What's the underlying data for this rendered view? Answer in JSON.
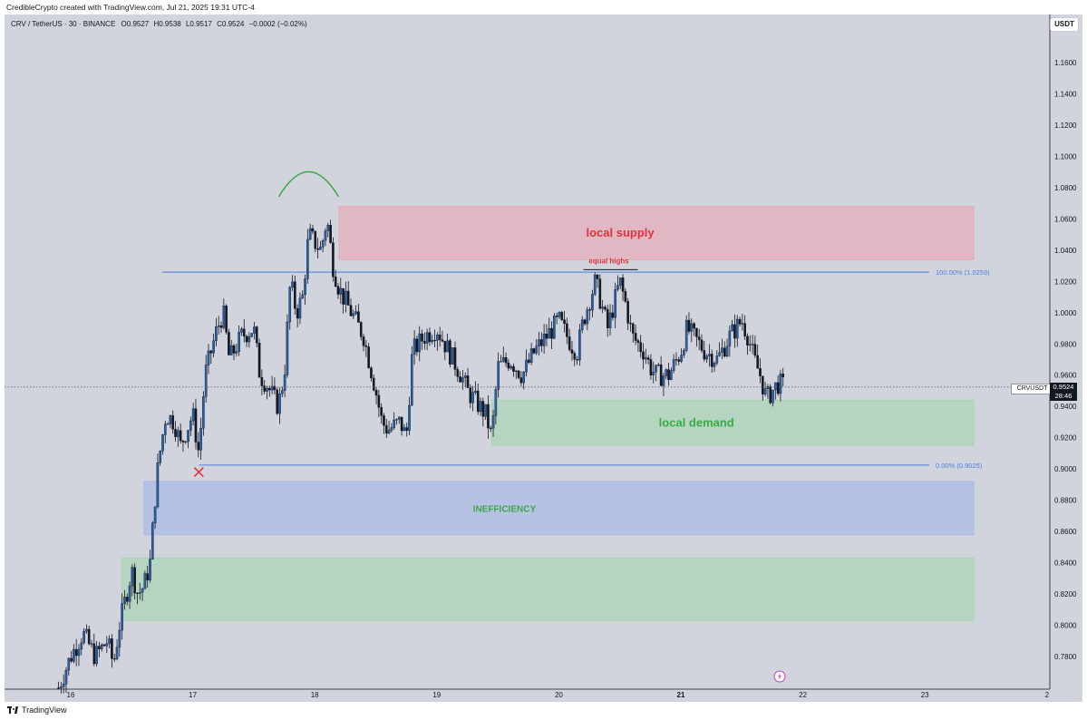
{
  "header": {
    "caption": "CredibleCrypto created with TradingView.com, Jul 21, 2025 19:31 UTC-4"
  },
  "legend": {
    "symbol": "CRV / TetherUS · 30 · BINANCE",
    "open_label": "O",
    "open": "0.9527",
    "high_label": "H",
    "high": "0.9538",
    "low_label": "L",
    "low": "0.9517",
    "close_label": "C",
    "close": "0.9524",
    "change": "−0.0002 (−0.02%)"
  },
  "currency_button": {
    "label": "USDT"
  },
  "price_tag": {
    "symbol": "CRVUSDT",
    "price": "0.9524",
    "countdown": "28:46"
  },
  "footer": {
    "brand": "TradingView"
  },
  "colors": {
    "background": "#d1d4dc",
    "candle_up": "#2962a8",
    "candle_down": "#131722",
    "fib_line": "#4a7fe0",
    "supply_zone": "#e8a7b3",
    "demand_zone": "#a8d5b0",
    "inefficiency_zone": "#a7b9e8",
    "supply_text": "#e5323a",
    "demand_text": "#3aaa45",
    "arc": "#2ea83a",
    "x_mark": "#e5323a"
  },
  "chart_data": {
    "type": "candlestick",
    "symbol": "CRV / TetherUS",
    "interval": "30",
    "x_ticks": [
      "16",
      "17",
      "18",
      "19",
      "20",
      "21",
      "22",
      "23",
      "2"
    ],
    "y_ticks": [
      "1.1600",
      "1.1400",
      "1.1200",
      "1.1000",
      "1.0800",
      "1.0600",
      "1.0400",
      "1.0200",
      "1.0000",
      "0.9800",
      "0.9600",
      "0.9400",
      "0.9200",
      "0.9000",
      "0.8800",
      "0.8600",
      "0.8400",
      "0.8200",
      "0.8000",
      "0.7800"
    ],
    "ylim": [
      0.765,
      1.178
    ],
    "grid": false,
    "zones": [
      {
        "name": "local-supply",
        "label": "local supply",
        "low": 1.034,
        "high": 1.068,
        "from_day": 18.2,
        "to_day": 23.4
      },
      {
        "name": "local-demand",
        "label": "local demand",
        "low": 0.915,
        "high": 0.944,
        "from_day": 19.45,
        "to_day": 23.4
      },
      {
        "name": "inefficiency",
        "label": "INEFFICIENCY",
        "low": 0.858,
        "high": 0.892,
        "from_day": 16.6,
        "to_day": 23.4
      },
      {
        "name": "lower-demand",
        "label": "",
        "low": 0.803,
        "high": 0.843,
        "from_day": 16.42,
        "to_day": 23.4
      }
    ],
    "fib_levels": [
      {
        "label": "100.00% (1.0259)",
        "price": 1.0259,
        "from_day": 16.75
      },
      {
        "label": "0.00% (0.9025)",
        "price": 0.9025,
        "from_day": 17.05
      }
    ],
    "annotations": [
      {
        "type": "text",
        "label": "equal highs",
        "price": 1.031,
        "day": 20.35
      },
      {
        "type": "arc",
        "day": 17.95,
        "price": 1.08
      },
      {
        "type": "x-mark",
        "day": 17.05,
        "price": 0.898
      }
    ],
    "last_price": 0.9524,
    "ohlc_path": [
      [
        15.9,
        0.76
      ],
      [
        16.0,
        0.78
      ],
      [
        16.1,
        0.795
      ],
      [
        16.2,
        0.78
      ],
      [
        16.3,
        0.79
      ],
      [
        16.35,
        0.775
      ],
      [
        16.4,
        0.8
      ],
      [
        16.5,
        0.835
      ],
      [
        16.55,
        0.82
      ],
      [
        16.6,
        0.825
      ],
      [
        16.65,
        0.84
      ],
      [
        16.7,
        0.89
      ],
      [
        16.72,
        0.905
      ],
      [
        16.78,
        0.935
      ],
      [
        16.85,
        0.93
      ],
      [
        16.9,
        0.915
      ],
      [
        17.0,
        0.935
      ],
      [
        17.05,
        0.91
      ],
      [
        17.1,
        0.96
      ],
      [
        17.2,
        0.99
      ],
      [
        17.25,
        1.0
      ],
      [
        17.3,
        0.97
      ],
      [
        17.4,
        0.985
      ],
      [
        17.5,
        0.99
      ],
      [
        17.55,
        0.96
      ],
      [
        17.6,
        0.955
      ],
      [
        17.7,
        0.94
      ],
      [
        17.75,
        0.96
      ],
      [
        17.8,
        1.02
      ],
      [
        17.85,
        1.0
      ],
      [
        17.9,
        1.01
      ],
      [
        17.95,
        1.05
      ],
      [
        18.05,
        1.04
      ],
      [
        18.1,
        1.06
      ],
      [
        18.15,
        1.03
      ],
      [
        18.2,
        1.015
      ],
      [
        18.3,
        1.0
      ],
      [
        18.4,
        0.985
      ],
      [
        18.5,
        0.95
      ],
      [
        18.55,
        0.93
      ],
      [
        18.6,
        0.925
      ],
      [
        18.7,
        0.93
      ],
      [
        18.75,
        0.92
      ],
      [
        18.8,
        0.975
      ],
      [
        18.85,
        0.98
      ],
      [
        18.9,
        0.985
      ],
      [
        19.0,
        0.99
      ],
      [
        19.1,
        0.975
      ],
      [
        19.2,
        0.96
      ],
      [
        19.25,
        0.95
      ],
      [
        19.3,
        0.945
      ],
      [
        19.35,
        0.94
      ],
      [
        19.4,
        0.935
      ],
      [
        19.45,
        0.92
      ],
      [
        19.5,
        0.965
      ],
      [
        19.6,
        0.97
      ],
      [
        19.7,
        0.96
      ],
      [
        19.8,
        0.975
      ],
      [
        19.9,
        0.985
      ],
      [
        20.0,
        0.995
      ],
      [
        20.1,
        0.98
      ],
      [
        20.15,
        0.975
      ],
      [
        20.2,
        0.995
      ],
      [
        20.3,
        1.02
      ],
      [
        20.35,
        1.005
      ],
      [
        20.4,
        0.99
      ],
      [
        20.5,
        1.02
      ],
      [
        20.55,
        1.005
      ],
      [
        20.6,
        0.985
      ],
      [
        20.7,
        0.975
      ],
      [
        20.75,
        0.965
      ],
      [
        20.8,
        0.96
      ],
      [
        20.9,
        0.96
      ],
      [
        21.0,
        0.975
      ],
      [
        21.05,
        0.99
      ],
      [
        21.1,
        0.985
      ],
      [
        21.15,
        0.98
      ],
      [
        21.2,
        0.975
      ],
      [
        21.3,
        0.97
      ],
      [
        21.4,
        0.985
      ],
      [
        21.5,
        0.995
      ],
      [
        21.55,
        0.985
      ],
      [
        21.6,
        0.97
      ],
      [
        21.65,
        0.96
      ],
      [
        21.7,
        0.945
      ],
      [
        21.75,
        0.95
      ],
      [
        21.8,
        0.955
      ],
      [
        21.85,
        0.9524
      ]
    ]
  }
}
